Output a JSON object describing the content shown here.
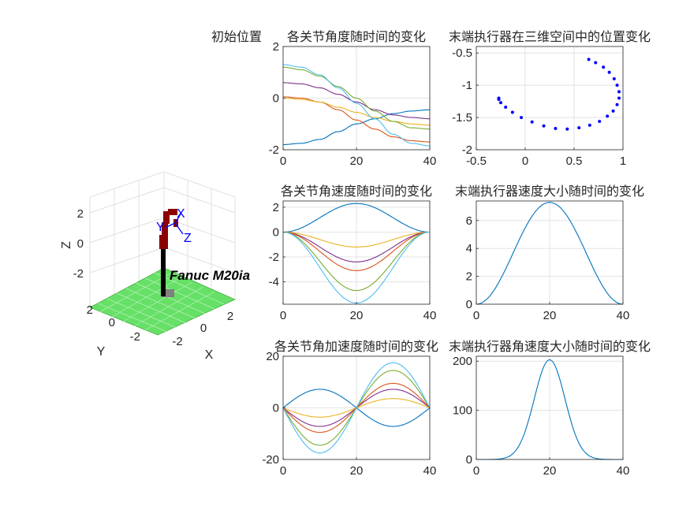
{
  "figure": {
    "robot_panel": {
      "name_label": "Fanuc M20ia",
      "axis_labels": {
        "x": "X",
        "y": "Y",
        "z": "Z"
      },
      "z_ticks": [
        "2",
        "0",
        "-2"
      ],
      "x_ticks": [
        "-2",
        "0",
        "2"
      ],
      "y_ticks": [
        "2",
        "0",
        "-2"
      ],
      "frame_labels": [
        "X",
        "Y",
        "Z"
      ],
      "floor_color": "#66e066",
      "robot_color": "#8b0000",
      "frame_color": "#0000ff"
    },
    "titles": {
      "robot": "初始位置",
      "angle": "各关节角度随时间的变化",
      "pos3d": "末端执行器在三维空间中的位置变化",
      "angvel": "各关节角速度随时间的变化",
      "speed": "末端执行器速度大小随时间的变化",
      "angacc": "各关节角加速度随时间的变化",
      "angspeed": "末端执行器角速度大小随时间的变化"
    }
  },
  "chart_data": [
    {
      "id": "angle",
      "type": "line",
      "title": "各关节角度随时间的变化",
      "xlim": [
        0,
        40
      ],
      "ylim": [
        -2,
        2
      ],
      "xticks": [
        0,
        20,
        40
      ],
      "yticks": [
        -2,
        0,
        2
      ],
      "grid": true,
      "x_samples": [
        0,
        5,
        10,
        15,
        20,
        25,
        30,
        35,
        40
      ],
      "series": [
        {
          "color": "#0072bd",
          "values": [
            -1.8,
            -1.75,
            -1.6,
            -1.3,
            -1.0,
            -0.8,
            -0.6,
            -0.5,
            -0.45
          ]
        },
        {
          "color": "#d95319",
          "values": [
            0.05,
            0.0,
            -0.15,
            -0.45,
            -0.85,
            -1.2,
            -1.5,
            -1.65,
            -1.7
          ]
        },
        {
          "color": "#edb120",
          "values": [
            0.0,
            -0.05,
            -0.15,
            -0.35,
            -0.55,
            -0.75,
            -0.9,
            -1.0,
            -1.05
          ]
        },
        {
          "color": "#7e2f8e",
          "values": [
            0.6,
            0.55,
            0.4,
            0.15,
            -0.15,
            -0.45,
            -0.65,
            -0.75,
            -0.8
          ]
        },
        {
          "color": "#77ac30",
          "values": [
            1.2,
            1.1,
            0.85,
            0.45,
            0.0,
            -0.5,
            -0.9,
            -1.15,
            -1.2
          ]
        },
        {
          "color": "#4dbeee",
          "values": [
            1.3,
            1.2,
            0.9,
            0.4,
            -0.2,
            -0.8,
            -1.4,
            -1.75,
            -1.85
          ]
        }
      ]
    },
    {
      "id": "pos3d",
      "type": "scatter",
      "title": "末端执行器在三维空间中的位置变化",
      "xlim": [
        -0.5,
        1
      ],
      "ylim": [
        -2,
        -0.4
      ],
      "xticks": [
        -0.5,
        0,
        0.5,
        1
      ],
      "yticks": [
        -2,
        -1.5,
        -1,
        -0.5
      ],
      "grid": true,
      "color": "#0000ff",
      "x": [
        0.65,
        0.72,
        0.8,
        0.86,
        0.91,
        0.94,
        0.96,
        0.96,
        0.94,
        0.9,
        0.84,
        0.76,
        0.66,
        0.55,
        0.43,
        0.31,
        0.19,
        0.07,
        -0.04,
        -0.13,
        -0.2,
        -0.25,
        -0.27,
        -0.27
      ],
      "y": [
        -0.6,
        -0.65,
        -0.72,
        -0.8,
        -0.9,
        -1.0,
        -1.1,
        -1.2,
        -1.3,
        -1.4,
        -1.48,
        -1.56,
        -1.62,
        -1.66,
        -1.68,
        -1.67,
        -1.63,
        -1.57,
        -1.5,
        -1.42,
        -1.34,
        -1.27,
        -1.22,
        -1.2
      ]
    },
    {
      "id": "angvel",
      "type": "line",
      "title": "各关节角速度随时间的变化",
      "xlim": [
        0,
        40
      ],
      "ylim": [
        -5.8,
        2.5
      ],
      "xticks": [
        0,
        20,
        40
      ],
      "yticks": [
        -4,
        -2,
        0,
        2
      ],
      "grid": true,
      "shape": "bump",
      "series": [
        {
          "color": "#0072bd",
          "peak": 2.3
        },
        {
          "color": "#edb120",
          "peak": -1.2
        },
        {
          "color": "#7e2f8e",
          "peak": -2.4
        },
        {
          "color": "#d95319",
          "peak": -3.1
        },
        {
          "color": "#77ac30",
          "peak": -4.7
        },
        {
          "color": "#4dbeee",
          "peak": -5.7
        }
      ]
    },
    {
      "id": "speed",
      "type": "line",
      "title": "末端执行器速度大小随时间的变化",
      "xlim": [
        0,
        40
      ],
      "ylim": [
        0,
        7.4
      ],
      "xticks": [
        0,
        20,
        40
      ],
      "yticks": [
        0,
        2,
        4,
        6
      ],
      "grid": true,
      "shape": "bump",
      "series": [
        {
          "color": "#0072bd",
          "peak": 7.3
        }
      ]
    },
    {
      "id": "angacc",
      "type": "line",
      "title": "各关节角加速度随时间的变化",
      "xlim": [
        0,
        40
      ],
      "ylim": [
        -20,
        20
      ],
      "xticks": [
        0,
        20,
        40
      ],
      "yticks": [
        -20,
        0,
        20
      ],
      "grid": true,
      "shape": "sine",
      "series": [
        {
          "color": "#0072bd",
          "amp": 7.2
        },
        {
          "color": "#edb120",
          "amp": -3.6
        },
        {
          "color": "#7e2f8e",
          "amp": -7.2
        },
        {
          "color": "#d95319",
          "amp": -9.5
        },
        {
          "color": "#77ac30",
          "amp": -14.5
        },
        {
          "color": "#4dbeee",
          "amp": -17.5
        }
      ]
    },
    {
      "id": "angspeed",
      "type": "line",
      "title": "末端执行器角速度大小随时间的变化",
      "xlim": [
        0,
        40
      ],
      "ylim": [
        0,
        210
      ],
      "xticks": [
        0,
        20,
        40
      ],
      "yticks": [
        0,
        100,
        200
      ],
      "grid": true,
      "shape": "gauss",
      "series": [
        {
          "color": "#0072bd",
          "peak": 203,
          "width": 4.2
        }
      ]
    }
  ]
}
